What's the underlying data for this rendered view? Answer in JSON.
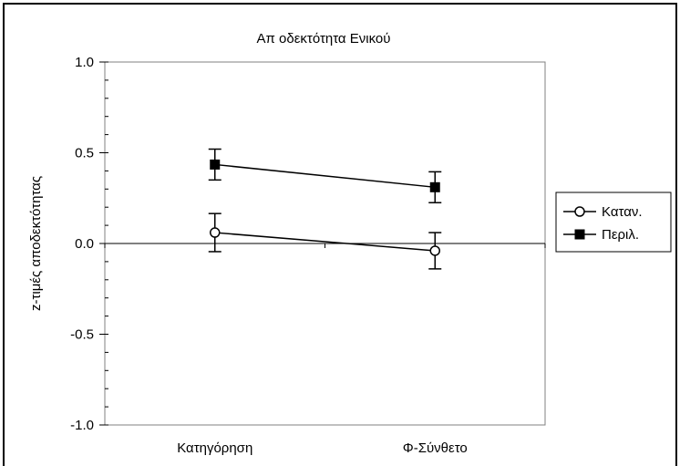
{
  "chart_data": {
    "type": "line",
    "title": "Απ οδεκτότητα Ενικού",
    "ylabel": "z-τιμές αποδεκτότητας",
    "xlabel": "",
    "categories": [
      "Κατηγόρηση",
      "Φ-Σύνθετο"
    ],
    "ylim": [
      -1.0,
      1.0
    ],
    "yticks": [
      "1.0",
      "0.5",
      "0.0",
      "-0.5",
      "-1.0"
    ],
    "ytick_values": [
      1.0,
      0.5,
      0.0,
      -0.5,
      -1.0
    ],
    "grid": false,
    "legend_position": "right",
    "series": [
      {
        "name": "Καταν.",
        "marker": "open-circle",
        "values": [
          0.06,
          -0.04
        ],
        "error": [
          0.105,
          0.1
        ]
      },
      {
        "name": "Περιλ.",
        "marker": "filled-square",
        "values": [
          0.435,
          0.31
        ],
        "error": [
          0.085,
          0.085
        ]
      }
    ]
  },
  "colors": {
    "line": "#000000",
    "background": "#ffffff"
  }
}
